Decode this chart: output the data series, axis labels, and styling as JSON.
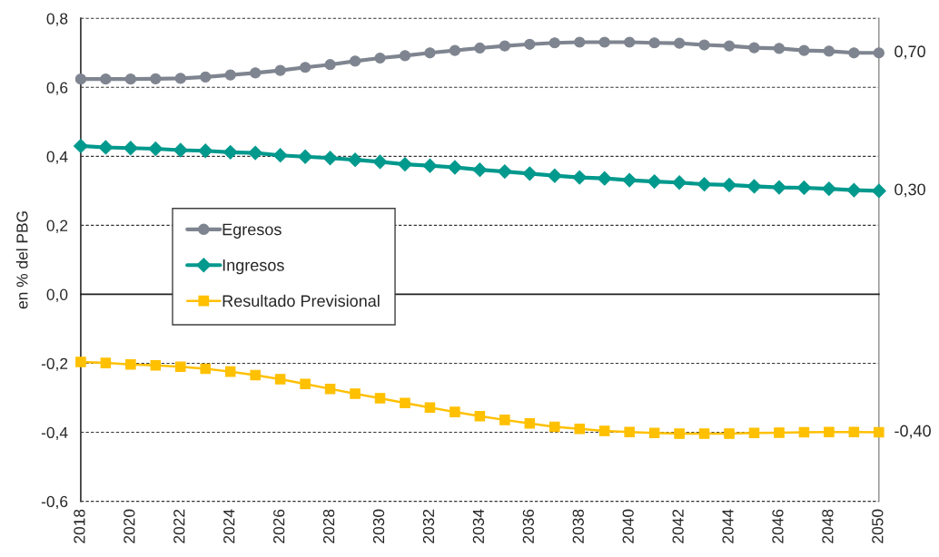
{
  "chart_data": {
    "type": "line",
    "ylabel": "en % del PBG",
    "x": [
      2018,
      2019,
      2020,
      2021,
      2022,
      2023,
      2024,
      2025,
      2026,
      2027,
      2028,
      2029,
      2030,
      2031,
      2032,
      2033,
      2034,
      2035,
      2036,
      2037,
      2038,
      2039,
      2040,
      2041,
      2042,
      2043,
      2044,
      2045,
      2046,
      2047,
      2048,
      2049,
      2050
    ],
    "xlim": [
      2018,
      2050
    ],
    "xticks": [
      2018,
      2020,
      2022,
      2024,
      2026,
      2028,
      2030,
      2032,
      2034,
      2036,
      2038,
      2040,
      2042,
      2044,
      2046,
      2048,
      2050
    ],
    "ylim": [
      -0.6,
      0.8
    ],
    "yticks": [
      {
        "value": -0.6,
        "label": "-0,6"
      },
      {
        "value": -0.4,
        "label": "-0,4"
      },
      {
        "value": -0.2,
        "label": "-0,2"
      },
      {
        "value": 0.0,
        "label": "0,0"
      },
      {
        "value": 0.2,
        "label": "0,2"
      },
      {
        "value": 0.4,
        "label": "0,4"
      },
      {
        "value": 0.6,
        "label": "0,6"
      },
      {
        "value": 0.8,
        "label": "0,8"
      }
    ],
    "grid": "y",
    "legend": "center left",
    "series": [
      {
        "name": "Egresos",
        "color": "#7f8590",
        "marker": "circle",
        "values": [
          0.624,
          0.624,
          0.624,
          0.625,
          0.626,
          0.63,
          0.636,
          0.642,
          0.649,
          0.658,
          0.666,
          0.676,
          0.685,
          0.692,
          0.7,
          0.707,
          0.714,
          0.72,
          0.725,
          0.729,
          0.731,
          0.731,
          0.731,
          0.729,
          0.728,
          0.723,
          0.72,
          0.715,
          0.713,
          0.707,
          0.705,
          0.7,
          0.7
        ],
        "value_labels": [
          null,
          null,
          null,
          null,
          null,
          null,
          null,
          null,
          null,
          null,
          null,
          null,
          null,
          null,
          null,
          null,
          null,
          null,
          null,
          null,
          null,
          null,
          null,
          null,
          null,
          null,
          null,
          null,
          null,
          null,
          null,
          null,
          "0,70"
        ]
      },
      {
        "name": "Ingresos",
        "color": "#00998d",
        "marker": "diamond",
        "values": [
          0.43,
          0.426,
          0.424,
          0.422,
          0.418,
          0.416,
          0.412,
          0.41,
          0.403,
          0.399,
          0.395,
          0.39,
          0.384,
          0.377,
          0.373,
          0.368,
          0.361,
          0.356,
          0.35,
          0.344,
          0.339,
          0.336,
          0.331,
          0.327,
          0.324,
          0.319,
          0.317,
          0.313,
          0.31,
          0.309,
          0.306,
          0.302,
          0.3
        ],
        "value_labels": [
          null,
          null,
          null,
          null,
          null,
          null,
          null,
          null,
          null,
          null,
          null,
          null,
          null,
          null,
          null,
          null,
          null,
          null,
          null,
          null,
          null,
          null,
          null,
          null,
          null,
          null,
          null,
          null,
          null,
          null,
          null,
          null,
          "0,30"
        ]
      },
      {
        "name": "Resultado Previsional",
        "color": "#ffc000",
        "marker": "square",
        "values": [
          -0.196,
          -0.199,
          -0.203,
          -0.206,
          -0.21,
          -0.216,
          -0.224,
          -0.234,
          -0.246,
          -0.26,
          -0.274,
          -0.288,
          -0.301,
          -0.315,
          -0.328,
          -0.341,
          -0.353,
          -0.364,
          -0.374,
          -0.384,
          -0.39,
          -0.396,
          -0.399,
          -0.402,
          -0.404,
          -0.404,
          -0.404,
          -0.402,
          -0.401,
          -0.4,
          -0.399,
          -0.399,
          -0.4
        ],
        "value_labels": [
          null,
          null,
          null,
          null,
          null,
          null,
          null,
          null,
          null,
          null,
          null,
          null,
          null,
          null,
          null,
          null,
          null,
          null,
          null,
          null,
          null,
          null,
          null,
          null,
          null,
          null,
          null,
          null,
          null,
          null,
          null,
          null,
          "-0,40"
        ]
      }
    ]
  }
}
